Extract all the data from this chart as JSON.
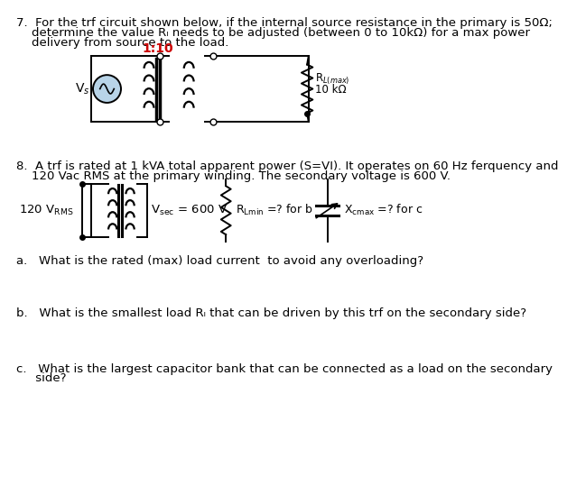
{
  "q7_line1": "7.  For the trf circuit shown below, if the internal source resistance in the primary is 50Ω;",
  "q7_line2": "    determine the value Rₗ needs to be adjusted (between 0 to 10kΩ) for a max power",
  "q7_line3": "    delivery from source to the load.",
  "q8_line1": "8.  A trf is rated at 1 kVA total apparent power (S=VI). It operates on 60 Hz ferquency and",
  "q8_line2": "    120 Vac RMS at the primary winding. The secondary voltage is 600 V.",
  "qa_line": "a.   What is the rated (max) load current  to avoid any overloading?",
  "qb_line": "b.   What is the smallest load Rₗ that can be driven by this trf on the secondary side?",
  "qc_line1": "c.   What is the largest capacitor bank that can be connected as a load on the secondary",
  "qc_line2": "     side?",
  "ratio_label": "1:10",
  "vs_label": "V$_s$",
  "rl_label": "R$_{L(max)}$",
  "rl_value": "10 kΩ",
  "vrms_label": "120 V$_{\\mathrm{RMS}}$",
  "vsec_label": "V$_{\\mathrm{sec}}$ = 600 V",
  "rlmin_label": "R$_{\\mathrm{Lmin}}$ =? for b",
  "xcmax_label": "X$_{\\mathrm{cmax}}$ =? for c",
  "bg_color": "#ffffff",
  "fg_color": "#000000",
  "ratio_color": "#cc0000",
  "fs_body": 9.5,
  "fs_label": 9.0
}
